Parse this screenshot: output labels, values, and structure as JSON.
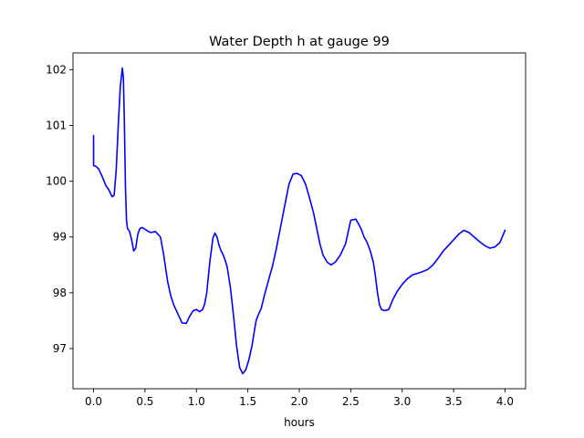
{
  "chart_data": {
    "type": "line",
    "title": "Water Depth h at gauge 99",
    "xlabel": "hours",
    "ylabel": "",
    "xlim": [
      -0.2,
      4.2
    ],
    "ylim": [
      96.28,
      102.3
    ],
    "x_ticks": [
      0.0,
      0.5,
      1.0,
      1.5,
      2.0,
      2.5,
      3.0,
      3.5,
      4.0
    ],
    "x_tick_labels": [
      "0.0",
      "0.5",
      "1.0",
      "1.5",
      "2.0",
      "2.5",
      "3.0",
      "3.5",
      "4.0"
    ],
    "y_ticks": [
      97,
      98,
      99,
      100,
      101,
      102
    ],
    "y_tick_labels": [
      "97",
      "98",
      "99",
      "100",
      "101",
      "102"
    ],
    "grid": false,
    "legend": "none",
    "series": [
      {
        "color": "#0000ff",
        "x": [
          0.0,
          0.0,
          0.0,
          0.02,
          0.05,
          0.08,
          0.12,
          0.15,
          0.18,
          0.2,
          0.22,
          0.24,
          0.26,
          0.28,
          0.29,
          0.3,
          0.31,
          0.32,
          0.33,
          0.34,
          0.35,
          0.37,
          0.39,
          0.41,
          0.43,
          0.45,
          0.47,
          0.5,
          0.53,
          0.56,
          0.6,
          0.65,
          0.68,
          0.7,
          0.72,
          0.75,
          0.78,
          0.82,
          0.86,
          0.9,
          0.94,
          0.97,
          1.0,
          1.03,
          1.06,
          1.08,
          1.1,
          1.13,
          1.16,
          1.18,
          1.2,
          1.22,
          1.24,
          1.26,
          1.28,
          1.3,
          1.33,
          1.36,
          1.39,
          1.42,
          1.45,
          1.48,
          1.51,
          1.54,
          1.56,
          1.58,
          1.6,
          1.63,
          1.66,
          1.7,
          1.74,
          1.78,
          1.82,
          1.86,
          1.9,
          1.94,
          1.98,
          2.02,
          2.06,
          2.1,
          2.14,
          2.17,
          2.2,
          2.23,
          2.27,
          2.31,
          2.35,
          2.4,
          2.45,
          2.5,
          2.55,
          2.6,
          2.63,
          2.66,
          2.69,
          2.72,
          2.74,
          2.76,
          2.78,
          2.8,
          2.83,
          2.87,
          2.91,
          2.95,
          3.0,
          3.05,
          3.1,
          3.15,
          3.2,
          3.25,
          3.3,
          3.35,
          3.4,
          3.45,
          3.5,
          3.55,
          3.6,
          3.65,
          3.7,
          3.75,
          3.8,
          3.85,
          3.9,
          3.95,
          4.0
        ],
        "y": [
          100.82,
          100.5,
          100.28,
          100.27,
          100.22,
          100.1,
          99.92,
          99.84,
          99.72,
          99.75,
          100.2,
          101.0,
          101.7,
          102.03,
          101.85,
          101.0,
          99.9,
          99.3,
          99.15,
          99.13,
          99.1,
          98.95,
          98.75,
          98.8,
          99.05,
          99.15,
          99.17,
          99.14,
          99.1,
          99.08,
          99.1,
          99.0,
          98.7,
          98.45,
          98.2,
          97.95,
          97.78,
          97.62,
          97.46,
          97.45,
          97.6,
          97.68,
          97.7,
          97.66,
          97.7,
          97.8,
          98.0,
          98.55,
          98.98,
          99.07,
          99.0,
          98.85,
          98.75,
          98.68,
          98.58,
          98.45,
          98.1,
          97.6,
          97.05,
          96.66,
          96.55,
          96.62,
          96.8,
          97.05,
          97.28,
          97.5,
          97.6,
          97.72,
          97.95,
          98.22,
          98.48,
          98.82,
          99.2,
          99.58,
          99.95,
          100.13,
          100.14,
          100.1,
          99.95,
          99.7,
          99.42,
          99.15,
          98.88,
          98.68,
          98.55,
          98.5,
          98.55,
          98.68,
          98.88,
          99.3,
          99.32,
          99.15,
          99.0,
          98.9,
          98.75,
          98.55,
          98.3,
          98.0,
          97.78,
          97.7,
          97.68,
          97.7,
          97.88,
          98.02,
          98.15,
          98.25,
          98.32,
          98.35,
          98.38,
          98.42,
          98.5,
          98.62,
          98.75,
          98.85,
          98.95,
          99.05,
          99.12,
          99.08,
          99.0,
          98.92,
          98.85,
          98.8,
          98.82,
          98.9,
          99.12
        ]
      }
    ]
  }
}
